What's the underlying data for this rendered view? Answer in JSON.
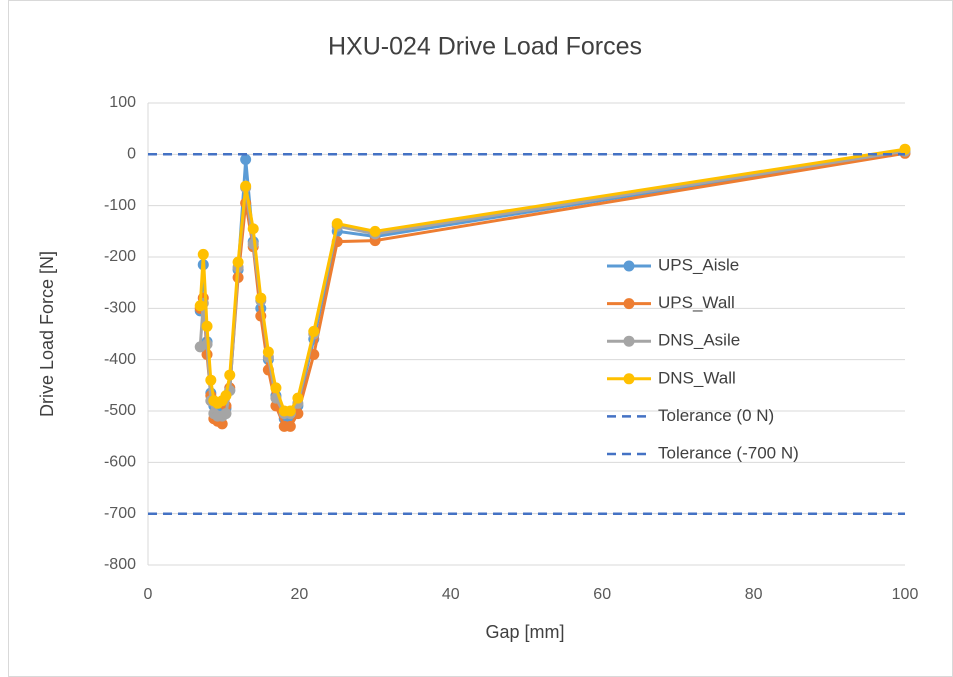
{
  "chart_data": {
    "type": "scatter",
    "title": "HXU-024 Drive Load Forces",
    "xlabel": "Gap [mm]",
    "ylabel": "Drive Load Force [N]",
    "xlim": [
      0,
      100
    ],
    "xticks": [
      0,
      20,
      40,
      60,
      80,
      100
    ],
    "ylim": [
      -800,
      100
    ],
    "yticks": [
      -800,
      -700,
      -600,
      -500,
      -400,
      -300,
      -200,
      -100,
      0,
      100
    ],
    "grid": true,
    "legend": "right",
    "series": [
      {
        "name": "UPS_Aisle",
        "color": "#5b9bd5",
        "marker": true,
        "x": [
          6.9,
          7.3,
          7.8,
          8.3,
          8.7,
          9.2,
          9.8,
          10.3,
          10.8,
          11.9,
          12.9,
          13.9,
          14.9,
          15.9,
          16.9,
          18,
          18.8,
          19.8,
          21.9,
          25,
          30,
          100
        ],
        "values": [
          -305,
          -215,
          -365,
          -465,
          -490,
          -500,
          -510,
          -495,
          -460,
          -225,
          -10,
          -170,
          -300,
          -400,
          -470,
          -515,
          -510,
          -490,
          -360,
          -150,
          -160,
          5
        ]
      },
      {
        "name": "UPS_Wall",
        "color": "#ed7d31",
        "marker": true,
        "x": [
          6.9,
          7.3,
          7.8,
          8.3,
          8.7,
          9.2,
          9.8,
          10.3,
          10.8,
          11.9,
          12.9,
          13.9,
          14.9,
          15.9,
          16.9,
          18,
          18.8,
          19.8,
          21.9,
          25,
          30,
          100
        ],
        "values": [
          -300,
          -280,
          -390,
          -470,
          -515,
          -520,
          -525,
          -490,
          -455,
          -240,
          -95,
          -180,
          -315,
          -420,
          -490,
          -530,
          -530,
          -505,
          -390,
          -170,
          -168,
          2
        ]
      },
      {
        "name": "DNS_Asile",
        "color": "#a5a5a5",
        "marker": true,
        "x": [
          6.9,
          7.3,
          7.8,
          8.3,
          8.7,
          9.2,
          9.8,
          10.3,
          10.8,
          11.9,
          12.9,
          13.9,
          14.9,
          15.9,
          16.9,
          18,
          18.8,
          19.8,
          21.9,
          25,
          30,
          100
        ],
        "values": [
          -375,
          -290,
          -370,
          -480,
          -505,
          -510,
          -510,
          -505,
          -460,
          -220,
          -65,
          -175,
          -285,
          -395,
          -475,
          -505,
          -505,
          -485,
          -350,
          -140,
          -155,
          6
        ]
      },
      {
        "name": "DNS_Wall",
        "color": "#ffc000",
        "marker": true,
        "x": [
          6.9,
          7.3,
          7.8,
          8.3,
          8.7,
          9.2,
          9.8,
          10.3,
          10.8,
          11.9,
          12.9,
          13.9,
          14.9,
          15.9,
          16.9,
          18,
          18.8,
          19.8,
          21.9,
          25,
          30,
          100
        ],
        "values": [
          -295,
          -195,
          -335,
          -440,
          -480,
          -485,
          -480,
          -470,
          -430,
          -210,
          -62,
          -145,
          -280,
          -385,
          -455,
          -500,
          -500,
          -475,
          -345,
          -135,
          -150,
          10
        ]
      },
      {
        "name": "Tolerance (0 N)",
        "color": "#4472c4",
        "marker": false,
        "dash": true,
        "x": [
          0,
          100
        ],
        "values": [
          0,
          0
        ]
      },
      {
        "name": "Tolerance (-700 N)",
        "color": "#4472c4",
        "marker": false,
        "dash": true,
        "x": [
          0,
          100
        ],
        "values": [
          -700,
          -700
        ]
      }
    ]
  }
}
